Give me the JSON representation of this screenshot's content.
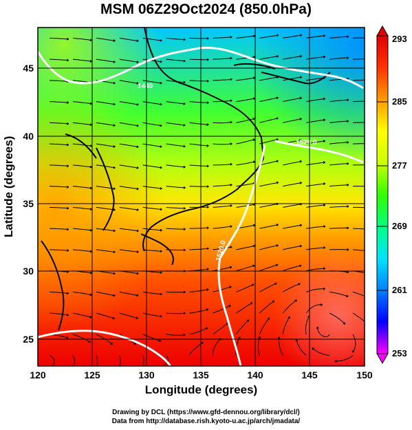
{
  "title": "MSM 06Z29Oct2024 (850.0hPa)",
  "x_axis": {
    "label": "Longitude (degrees)",
    "ticks": [
      "120",
      "125",
      "130",
      "135",
      "140",
      "145",
      "150"
    ]
  },
  "y_axis": {
    "label": "Latitude  (degrees)",
    "ticks": [
      "25",
      "30",
      "35",
      "40",
      "45"
    ]
  },
  "colorbar": {
    "labels": [
      "293",
      "285",
      "277",
      "269",
      "261",
      "253"
    ]
  },
  "contour_labels": [
    "1440",
    "1520.0",
    "1520.0"
  ],
  "credits": {
    "line1": "Drawing by DCL (https://www.gfd-dennou.org/library/dcl/)",
    "line2": "Data from http://database.rish.kyoto-u.ac.jp/arch/jmadata/"
  },
  "map_data": {
    "lon_range": [
      120,
      150
    ],
    "lat_range": [
      23,
      48
    ],
    "variable_range": [
      253,
      293
    ],
    "colors": [
      "#ff00ff",
      "#8000ff",
      "#0000ff",
      "#0080ff",
      "#00e5ff",
      "#00ff80",
      "#33ff00",
      "#ccff00",
      "#ffff00",
      "#ff9900",
      "#ff3300",
      "#e00000"
    ]
  }
}
